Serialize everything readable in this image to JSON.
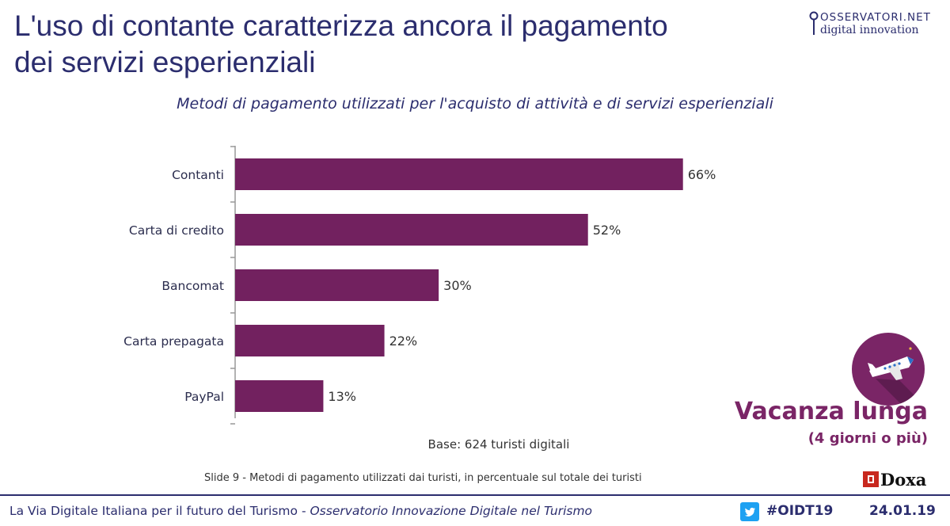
{
  "header": {
    "title_line1": "L'uso di contante caratterizza ancora il pagamento",
    "title_line2": "dei servizi esperienziali",
    "logo_line1": "OSSERVATORI.NET",
    "logo_line2": "digital innovation"
  },
  "colors": {
    "bar": "#72215f",
    "title": "#2b2d6e",
    "accent": "#7a2566"
  },
  "chart_data": {
    "type": "bar",
    "orientation": "horizontal",
    "title": "Metodi di pagamento utilizzati per l'acquisto di attività e di servizi esperienziali",
    "categories": [
      "Contanti",
      "Carta di credito",
      "Bancomat",
      "Carta prepagata",
      "PayPal"
    ],
    "values": [
      66,
      52,
      30,
      22,
      13
    ],
    "value_labels": [
      "66%",
      "52%",
      "30%",
      "22%",
      "13%"
    ],
    "xlim": [
      0,
      70
    ],
    "grid": false,
    "legend": "none",
    "base_note": "Base: 624 turisti digitali"
  },
  "badge": {
    "icon": "airplane-icon",
    "title": "Vacanza lunga",
    "subtitle": "(4 giorni o più)"
  },
  "slide_note": "Slide 9 - Metodi di pagamento utilizzati dai turisti, in percentuale sul totale dei turisti",
  "source_logo": "Doxa",
  "footer": {
    "text_plain": "La Via Digitale Italiana per il futuro del Turismo - ",
    "text_italic": "Osservatorio Innovazione Digitale nel Turismo",
    "hashtag": "#OIDT19",
    "date": "24.01.19"
  }
}
